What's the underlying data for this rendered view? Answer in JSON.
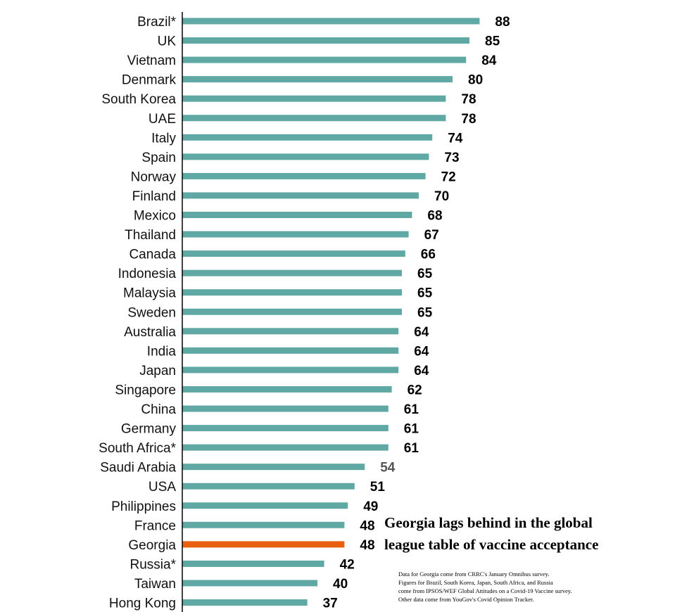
{
  "chart_data": {
    "type": "bar",
    "orientation": "horizontal",
    "categories": [
      "Brazil*",
      "UK",
      "Vietnam",
      "Denmark",
      "South Korea",
      "UAE",
      "Italy",
      "Spain",
      "Norway",
      "Finland",
      "Mexico",
      "Thailand",
      "Canada",
      "Indonesia",
      "Malaysia",
      "Sweden",
      "Australia",
      "India",
      "Japan",
      "Singapore",
      "China",
      "Germany",
      "South Africa*",
      "Saudi Arabia",
      "USA",
      "Philippines",
      "France",
      "Georgia",
      "Russia*",
      "Taiwan",
      "Hong Kong"
    ],
    "values": [
      88,
      85,
      84,
      80,
      78,
      78,
      74,
      73,
      72,
      70,
      68,
      67,
      66,
      65,
      65,
      65,
      64,
      64,
      64,
      62,
      61,
      61,
      61,
      54,
      51,
      49,
      48,
      48,
      42,
      40,
      37
    ],
    "highlight": "Georgia",
    "colors": {
      "bar": "#5fa8a3",
      "highlight": "#e8600f",
      "axis": "#000000"
    },
    "muted_label": "Saudi Arabia",
    "grid": false
  },
  "headline": [
    "Georgia lags behind in the global",
    "league table of vaccine acceptance"
  ],
  "note": [
    "Data for Georgia come from CRRC's January Omnibus survey.",
    "Figures for Brazil, South Korea, Japan, South Africa, and Russia",
    "come from IPSOS/WEF Global Attitudes on a Covid-19 Vaccine survey.",
    "Other data come from YouGov's Covid Opinion Tracker."
  ]
}
